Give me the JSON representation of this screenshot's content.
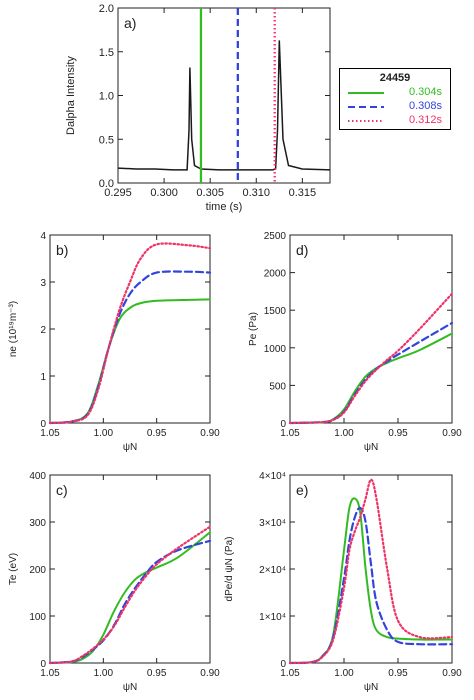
{
  "series_names": [
    "0.304s",
    "0.308s",
    "0.312s"
  ],
  "colors": {
    "s1": "#33bb22",
    "s2": "#3344dd",
    "s3": "#ee3366",
    "black": "#1a1a1a"
  },
  "legend": {
    "title": "24459",
    "entries": [
      "0.304s",
      "0.308s",
      "0.312s"
    ]
  },
  "chart_data": [
    {
      "panel": "a)",
      "type": "line",
      "xlabel": "time (s)",
      "ylabel": "Dalpha Intensity",
      "xlim": [
        0.295,
        0.318
      ],
      "ylim": [
        0.0,
        2.0
      ],
      "xticks": [
        0.295,
        0.3,
        0.305,
        0.31,
        0.315
      ],
      "xticklabels": [
        "0.295",
        "0.300",
        "0.305",
        "0.310",
        "0.315"
      ],
      "yticks": [
        0.0,
        0.5,
        1.0,
        1.5,
        2.0
      ],
      "yticklabels": [
        "0.0",
        "0.5",
        "1.0",
        "1.5",
        "2.0"
      ],
      "trace": {
        "x": [
          0.295,
          0.297,
          0.299,
          0.301,
          0.3025,
          0.3027,
          0.3028,
          0.303,
          0.3033,
          0.304,
          0.306,
          0.308,
          0.31,
          0.3118,
          0.3121,
          0.3123,
          0.3125,
          0.3129,
          0.3135,
          0.315,
          0.318
        ],
        "y": [
          0.17,
          0.16,
          0.16,
          0.15,
          0.15,
          0.6,
          1.32,
          0.5,
          0.2,
          0.16,
          0.15,
          0.15,
          0.15,
          0.15,
          0.16,
          0.6,
          1.63,
          0.5,
          0.2,
          0.16,
          0.15
        ]
      },
      "markers": [
        0.304,
        0.308,
        0.312
      ]
    },
    {
      "panel": "b)",
      "type": "line",
      "xlabel": "ψN",
      "ylabel": "ne (10¹⁹m⁻³)",
      "xlim": [
        1.05,
        0.9
      ],
      "ylim": [
        0,
        4
      ],
      "xticks": [
        1.05,
        1.0,
        0.95,
        0.9
      ],
      "xticklabels": [
        "1.05",
        "1.00",
        "0.95",
        "0.90"
      ],
      "yticks": [
        0,
        1,
        2,
        3,
        4
      ],
      "yticklabels": [
        "0",
        "1",
        "2",
        "3",
        "4"
      ],
      "series": [
        {
          "name": "0.304s",
          "x": [
            1.05,
            1.03,
            1.015,
            1.005,
            0.995,
            0.985,
            0.975,
            0.965,
            0.95,
            0.92,
            0.9
          ],
          "y": [
            0.0,
            0.03,
            0.2,
            0.8,
            1.6,
            2.2,
            2.45,
            2.55,
            2.6,
            2.62,
            2.63
          ]
        },
        {
          "name": "0.308s",
          "x": [
            1.05,
            1.03,
            1.015,
            1.005,
            0.995,
            0.985,
            0.975,
            0.965,
            0.95,
            0.92,
            0.9
          ],
          "y": [
            0.0,
            0.03,
            0.18,
            0.75,
            1.6,
            2.3,
            2.75,
            3.0,
            3.2,
            3.22,
            3.2
          ]
        },
        {
          "name": "0.312s",
          "x": [
            1.05,
            1.03,
            1.015,
            1.005,
            0.995,
            0.985,
            0.975,
            0.965,
            0.95,
            0.92,
            0.9
          ],
          "y": [
            0.0,
            0.03,
            0.16,
            0.7,
            1.6,
            2.4,
            3.0,
            3.5,
            3.8,
            3.78,
            3.72
          ]
        }
      ]
    },
    {
      "panel": "c)",
      "type": "line",
      "xlabel": "ψN",
      "ylabel": "Te (eV)",
      "xlim": [
        1.05,
        0.9
      ],
      "ylim": [
        0,
        400
      ],
      "xticks": [
        1.05,
        1.0,
        0.95,
        0.9
      ],
      "xticklabels": [
        "1.05",
        "1.00",
        "0.95",
        "0.90"
      ],
      "yticks": [
        0,
        100,
        200,
        300,
        400
      ],
      "yticklabels": [
        "0",
        "100",
        "200",
        "300",
        "400"
      ],
      "series": [
        {
          "name": "0.304s",
          "x": [
            1.05,
            1.03,
            1.02,
            1.01,
            1.0,
            0.99,
            0.98,
            0.97,
            0.96,
            0.95,
            0.93,
            0.9
          ],
          "y": [
            0,
            2,
            8,
            25,
            60,
            110,
            150,
            178,
            193,
            203,
            225,
            278
          ]
        },
        {
          "name": "0.308s",
          "x": [
            1.05,
            1.03,
            1.02,
            1.01,
            1.0,
            0.99,
            0.98,
            0.97,
            0.96,
            0.95,
            0.93,
            0.9
          ],
          "y": [
            0,
            3,
            12,
            28,
            48,
            80,
            125,
            160,
            190,
            215,
            240,
            260
          ]
        },
        {
          "name": "0.312s",
          "x": [
            1.05,
            1.03,
            1.02,
            1.01,
            1.0,
            0.99,
            0.98,
            0.97,
            0.96,
            0.95,
            0.93,
            0.9
          ],
          "y": [
            0,
            3,
            14,
            30,
            50,
            78,
            118,
            155,
            185,
            210,
            245,
            290
          ]
        }
      ]
    },
    {
      "panel": "d)",
      "type": "line",
      "xlabel": "ψN",
      "ylabel": "Pe (Pa)",
      "xlim": [
        1.05,
        0.9
      ],
      "ylim": [
        0,
        2500
      ],
      "xticks": [
        1.05,
        1.0,
        0.95,
        0.9
      ],
      "xticklabels": [
        "1.05",
        "1.00",
        "0.95",
        "0.90"
      ],
      "yticks": [
        0,
        500,
        1000,
        1500,
        2000,
        2500
      ],
      "yticklabels": [
        "0",
        "500",
        "1000",
        "1500",
        "2000",
        "2500"
      ],
      "series": [
        {
          "name": "0.304s",
          "x": [
            1.05,
            1.02,
            1.01,
            1.0,
            0.99,
            0.98,
            0.97,
            0.96,
            0.95,
            0.93,
            0.9
          ],
          "y": [
            0,
            10,
            50,
            180,
            420,
            620,
            730,
            800,
            860,
            970,
            1190
          ]
        },
        {
          "name": "0.308s",
          "x": [
            1.05,
            1.02,
            1.01,
            1.0,
            0.99,
            0.98,
            0.97,
            0.96,
            0.95,
            0.93,
            0.9
          ],
          "y": [
            0,
            12,
            45,
            150,
            380,
            580,
            720,
            820,
            910,
            1080,
            1330
          ]
        },
        {
          "name": "0.312s",
          "x": [
            1.05,
            1.02,
            1.01,
            1.0,
            0.99,
            0.98,
            0.97,
            0.96,
            0.95,
            0.93,
            0.9
          ],
          "y": [
            0,
            12,
            40,
            140,
            360,
            560,
            710,
            840,
            960,
            1250,
            1720
          ]
        }
      ]
    },
    {
      "panel": "e)",
      "type": "line",
      "xlabel": "ψN",
      "ylabel": "dPe/d ψN (Pa)",
      "xlim": [
        1.05,
        0.9
      ],
      "ylim": [
        0,
        40000
      ],
      "xticks": [
        1.05,
        1.0,
        0.95,
        0.9
      ],
      "xticklabels": [
        "1.05",
        "1.00",
        "0.95",
        "0.90"
      ],
      "yticks": [
        0,
        10000,
        20000,
        30000,
        40000
      ],
      "yticklabels": [
        "0",
        "1×10⁴",
        "2×10⁴",
        "3×10⁴",
        "4×10⁴"
      ],
      "series": [
        {
          "name": "0.304s",
          "x": [
            1.05,
            1.03,
            1.02,
            1.01,
            1.0,
            0.995,
            0.99,
            0.985,
            0.98,
            0.975,
            0.97,
            0.96,
            0.95,
            0.93,
            0.9
          ],
          "y": [
            0,
            200,
            1500,
            6000,
            24000,
            33000,
            35000,
            32000,
            20000,
            11000,
            7000,
            5500,
            5200,
            5000,
            5000
          ]
        },
        {
          "name": "0.308s",
          "x": [
            1.05,
            1.03,
            1.02,
            1.01,
            1.0,
            0.995,
            0.99,
            0.985,
            0.98,
            0.975,
            0.97,
            0.96,
            0.95,
            0.93,
            0.9
          ],
          "y": [
            0,
            200,
            1400,
            5500,
            18000,
            26000,
            31000,
            33000,
            30000,
            21000,
            13000,
            7000,
            4500,
            4000,
            4000
          ]
        },
        {
          "name": "0.312s",
          "x": [
            1.05,
            1.03,
            1.02,
            1.01,
            1.0,
            0.995,
            0.99,
            0.985,
            0.98,
            0.975,
            0.97,
            0.96,
            0.95,
            0.93,
            0.9
          ],
          "y": [
            0,
            200,
            1300,
            5000,
            16000,
            24000,
            28000,
            31000,
            35000,
            39000,
            35000,
            20000,
            9000,
            5500,
            5500
          ]
        }
      ]
    }
  ]
}
